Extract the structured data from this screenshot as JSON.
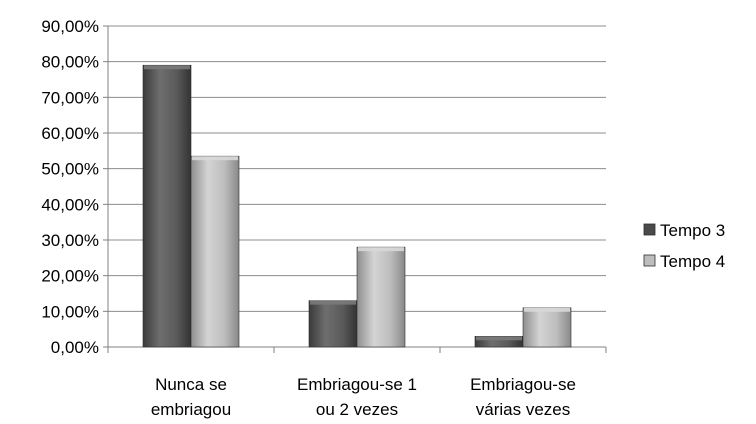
{
  "chart_data": {
    "type": "bar",
    "categories": [
      [
        "Nunca se",
        "embriagou"
      ],
      [
        "Embriagou-se 1",
        "ou 2 vezes"
      ],
      [
        "Embriagou-se",
        "várias vezes"
      ]
    ],
    "series": [
      {
        "name": "Tempo 3",
        "values": [
          79.0,
          13.0,
          3.0
        ],
        "color": "#5a5a5a"
      },
      {
        "name": "Tempo 4",
        "values": [
          53.5,
          28.0,
          11.0
        ],
        "color": "#b0b0b0"
      }
    ],
    "ylim": [
      0,
      90
    ],
    "yticks": [
      "0,00%",
      "10,00%",
      "20,00%",
      "30,00%",
      "40,00%",
      "50,00%",
      "60,00%",
      "70,00%",
      "80,00%",
      "90,00%"
    ],
    "grid": true,
    "legend_position": "right",
    "title": "",
    "xlabel": "",
    "ylabel": ""
  }
}
